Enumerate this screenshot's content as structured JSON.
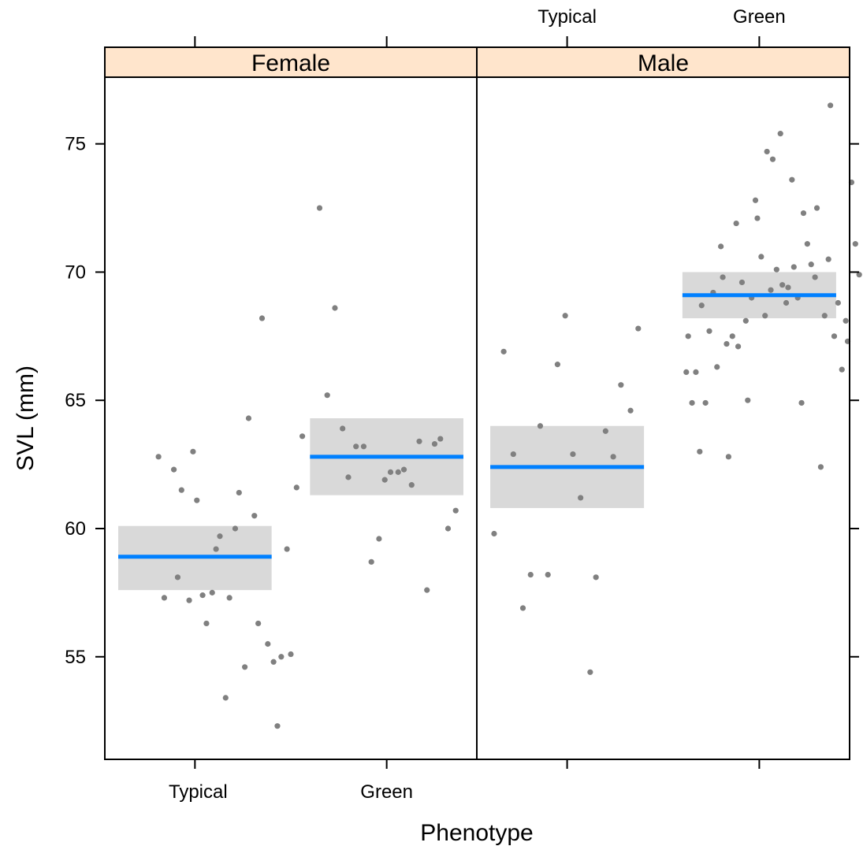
{
  "chart_data": {
    "type": "scatter",
    "xlabel": "Phenotype",
    "ylabel": "SVL (mm)",
    "ylim": [
      51.0,
      77.6
    ],
    "yticks": [
      55,
      60,
      65,
      70,
      75
    ],
    "categories": [
      "Typical",
      "Green"
    ],
    "colors": {
      "points": "#808080",
      "fit": "#0080ff",
      "band": "#d9d9d9",
      "strip": "#ffe5cc",
      "frame": "#000000"
    },
    "panels": [
      {
        "name": "Female",
        "groups": [
          {
            "category": "Typical",
            "fit": 58.9,
            "ci": [
              57.6,
              60.1
            ],
            "points": [
              [
                0.81,
                62.8
              ],
              [
                0.84,
                57.3
              ],
              [
                0.89,
                62.3
              ],
              [
                0.91,
                58.1
              ],
              [
                0.93,
                61.5
              ],
              [
                0.97,
                57.2
              ],
              [
                0.99,
                63.0
              ],
              [
                1.01,
                61.1
              ],
              [
                1.04,
                57.4
              ],
              [
                1.06,
                56.3
              ],
              [
                1.09,
                57.5
              ],
              [
                1.11,
                59.2
              ],
              [
                1.13,
                59.7
              ],
              [
                1.16,
                53.4
              ],
              [
                1.18,
                57.3
              ],
              [
                1.21,
                60.0
              ],
              [
                1.23,
                61.4
              ],
              [
                1.26,
                54.6
              ],
              [
                1.28,
                64.3
              ],
              [
                1.31,
                60.5
              ],
              [
                1.33,
                56.3
              ],
              [
                1.35,
                68.2
              ],
              [
                1.38,
                55.5
              ],
              [
                1.41,
                54.8
              ],
              [
                1.43,
                52.3
              ],
              [
                1.45,
                55.0
              ],
              [
                1.48,
                59.2
              ],
              [
                1.5,
                55.1
              ],
              [
                1.53,
                61.6
              ],
              [
                1.56,
                63.6
              ]
            ]
          },
          {
            "category": "Green",
            "fit": 62.8,
            "ci": [
              61.3,
              64.3
            ],
            "points": [
              [
                1.65,
                72.5
              ],
              [
                1.69,
                65.2
              ],
              [
                1.73,
                68.6
              ],
              [
                1.77,
                63.9
              ],
              [
                1.8,
                62.0
              ],
              [
                1.84,
                63.2
              ],
              [
                1.88,
                63.2
              ],
              [
                1.92,
                58.7
              ],
              [
                1.96,
                59.6
              ],
              [
                1.99,
                61.9
              ],
              [
                2.02,
                62.2
              ],
              [
                2.06,
                62.2
              ],
              [
                2.09,
                62.3
              ],
              [
                2.13,
                61.7
              ],
              [
                2.17,
                63.4
              ],
              [
                2.21,
                57.6
              ],
              [
                2.25,
                63.3
              ],
              [
                2.28,
                63.5
              ],
              [
                2.32,
                60.0
              ],
              [
                2.36,
                60.7
              ]
            ]
          }
        ]
      },
      {
        "name": "Male",
        "groups": [
          {
            "category": "Typical",
            "fit": 62.4,
            "ci": [
              60.8,
              64.0
            ],
            "points": [
              [
                0.62,
                59.8
              ],
              [
                0.67,
                66.9
              ],
              [
                0.72,
                62.9
              ],
              [
                0.77,
                56.9
              ],
              [
                0.81,
                58.2
              ],
              [
                0.86,
                64.0
              ],
              [
                0.9,
                58.2
              ],
              [
                0.95,
                66.4
              ],
              [
                0.99,
                68.3
              ],
              [
                1.03,
                62.9
              ],
              [
                1.07,
                61.2
              ],
              [
                1.12,
                54.4
              ],
              [
                1.15,
                58.1
              ],
              [
                1.2,
                63.8
              ],
              [
                1.24,
                62.8
              ],
              [
                1.28,
                65.6
              ],
              [
                1.33,
                64.6
              ],
              [
                1.37,
                67.8
              ]
            ]
          },
          {
            "category": "Green",
            "fit": 69.1,
            "ci": [
              68.2,
              70.0
            ],
            "points": [
              [
                1.62,
                66.1
              ],
              [
                1.63,
                67.5
              ],
              [
                1.65,
                64.9
              ],
              [
                1.67,
                66.1
              ],
              [
                1.69,
                63.0
              ],
              [
                1.7,
                68.7
              ],
              [
                1.72,
                64.9
              ],
              [
                1.74,
                67.7
              ],
              [
                1.76,
                69.2
              ],
              [
                1.78,
                66.3
              ],
              [
                1.8,
                71.0
              ],
              [
                1.81,
                69.8
              ],
              [
                1.83,
                67.2
              ],
              [
                1.84,
                62.8
              ],
              [
                1.86,
                67.5
              ],
              [
                1.88,
                71.9
              ],
              [
                1.89,
                67.1
              ],
              [
                1.91,
                69.6
              ],
              [
                1.93,
                68.1
              ],
              [
                1.94,
                65.0
              ],
              [
                1.96,
                69.0
              ],
              [
                1.98,
                72.8
              ],
              [
                1.99,
                72.1
              ],
              [
                2.01,
                70.6
              ],
              [
                2.03,
                68.3
              ],
              [
                2.04,
                74.7
              ],
              [
                2.06,
                69.3
              ],
              [
                2.07,
                74.4
              ],
              [
                2.09,
                70.1
              ],
              [
                2.11,
                75.4
              ],
              [
                2.12,
                69.5
              ],
              [
                2.14,
                68.8
              ],
              [
                2.15,
                69.4
              ],
              [
                2.17,
                73.6
              ],
              [
                2.18,
                70.2
              ],
              [
                2.2,
                69.0
              ],
              [
                2.22,
                64.9
              ],
              [
                2.23,
                72.3
              ],
              [
                2.25,
                71.1
              ],
              [
                2.27,
                70.3
              ],
              [
                2.29,
                69.8
              ],
              [
                2.3,
                72.5
              ],
              [
                2.32,
                62.4
              ],
              [
                2.34,
                68.3
              ],
              [
                2.36,
                70.5
              ],
              [
                2.37,
                76.5
              ],
              [
                2.39,
                67.5
              ],
              [
                2.41,
                68.8
              ],
              [
                2.43,
                66.2
              ],
              [
                2.45,
                68.1
              ],
              [
                2.46,
                67.3
              ],
              [
                2.48,
                73.5
              ],
              [
                2.5,
                71.1
              ],
              [
                2.52,
                69.9
              ]
            ]
          }
        ]
      }
    ]
  }
}
